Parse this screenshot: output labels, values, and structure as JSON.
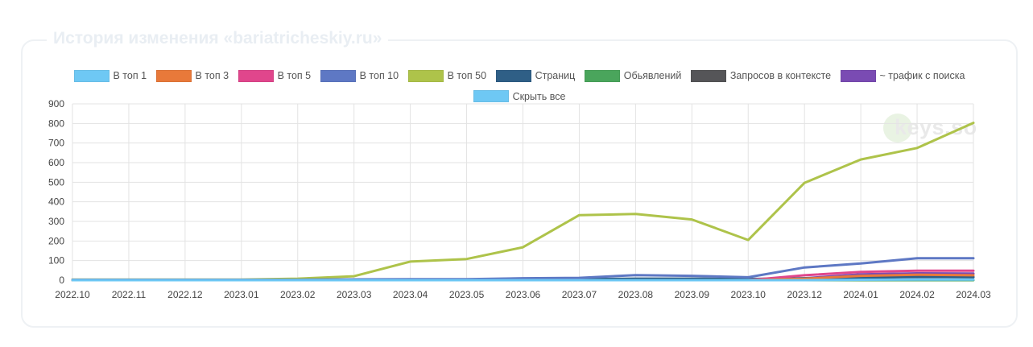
{
  "page": {
    "title": "История изменения «bariatricheskiy.ru»"
  },
  "legend": {
    "items": [
      {
        "label": "В топ 1",
        "color": "#6ec8f4"
      },
      {
        "label": "В топ 3",
        "color": "#e8793a"
      },
      {
        "label": "В топ 5",
        "color": "#e0468c"
      },
      {
        "label": "В топ 10",
        "color": "#5e78c4"
      },
      {
        "label": "В топ 50",
        "color": "#aec34a"
      },
      {
        "label": "Страниц",
        "color": "#2f5f86"
      },
      {
        "label": "Обьявлений",
        "color": "#4aa55c"
      },
      {
        "label": "Запросов в контексте",
        "color": "#555558"
      },
      {
        "label": "~ трафик с поиска",
        "color": "#7a4bb3"
      }
    ],
    "hide_all": {
      "label": "Скрыть все",
      "color": "#6ec8f4"
    }
  },
  "watermark": {
    "text": "keys.so"
  },
  "chart_data": {
    "type": "line",
    "categories": [
      "2022.10",
      "2022.11",
      "2022.12",
      "2023.01",
      "2023.02",
      "2023.03",
      "2023.04",
      "2023.05",
      "2023.06",
      "2023.07",
      "2023.08",
      "2023.09",
      "2023.10",
      "2023.12",
      "2024.01",
      "2024.02",
      "2024.03"
    ],
    "ylim": [
      0,
      900
    ],
    "yticks": [
      0,
      100,
      200,
      300,
      400,
      500,
      600,
      700,
      800,
      900
    ],
    "grid": true,
    "legend_position": "top",
    "series": [
      {
        "name": "В топ 1",
        "color": "#6ec8f4",
        "values": [
          0,
          0,
          0,
          0,
          0,
          0,
          0,
          0,
          0,
          0,
          0,
          0,
          0,
          0,
          2,
          3,
          3
        ]
      },
      {
        "name": "В топ 3",
        "color": "#e8793a",
        "values": [
          0,
          0,
          0,
          0,
          0,
          0,
          0,
          0,
          0,
          0,
          0,
          0,
          0,
          8,
          22,
          28,
          25
        ]
      },
      {
        "name": "В топ 5",
        "color": "#e0468c",
        "values": [
          0,
          0,
          0,
          0,
          0,
          0,
          0,
          0,
          0,
          0,
          0,
          0,
          0,
          25,
          42,
          48,
          48
        ]
      },
      {
        "name": "В топ 10",
        "color": "#5e78c4",
        "values": [
          2,
          2,
          2,
          2,
          2,
          4,
          5,
          5,
          10,
          12,
          26,
          22,
          15,
          65,
          85,
          112,
          112
        ]
      },
      {
        "name": "В топ 50",
        "color": "#aec34a",
        "values": [
          3,
          3,
          3,
          3,
          8,
          20,
          95,
          108,
          168,
          332,
          338,
          310,
          205,
          497,
          616,
          675,
          803
        ]
      },
      {
        "name": "Страниц",
        "color": "#2f5f86",
        "values": [
          1,
          1,
          1,
          1,
          1,
          2,
          2,
          2,
          4,
          5,
          8,
          8,
          6,
          10,
          14,
          16,
          16
        ]
      },
      {
        "name": "Обьявлений",
        "color": "#4aa55c",
        "values": [
          0,
          0,
          0,
          0,
          0,
          0,
          0,
          0,
          0,
          0,
          0,
          0,
          0,
          0,
          0,
          0,
          0
        ]
      },
      {
        "name": "Запросов в контексте",
        "color": "#555558",
        "values": [
          0,
          0,
          0,
          0,
          0,
          0,
          0,
          0,
          0,
          0,
          0,
          0,
          0,
          5,
          12,
          18,
          15
        ]
      },
      {
        "name": "~ трафик с поиска",
        "color": "#7a4bb3",
        "values": [
          0,
          0,
          0,
          0,
          0,
          0,
          0,
          0,
          0,
          0,
          0,
          0,
          0,
          10,
          30,
          35,
          34
        ]
      }
    ]
  }
}
